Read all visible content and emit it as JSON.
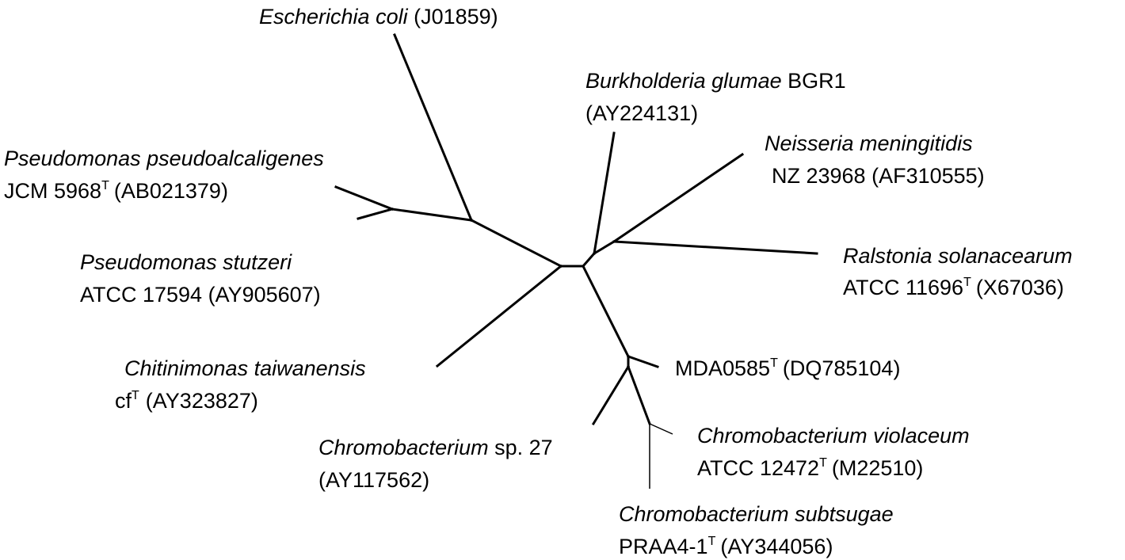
{
  "tree": {
    "taxa": {
      "ecoli": {
        "name": "Escherichia coli",
        "accession": "(J01859)"
      },
      "burkholderia": {
        "name": "Burkholderia glumae",
        "strain": "BGR1",
        "accession": "(AY224131)"
      },
      "neisseria": {
        "name": "Neisseria meningitidis",
        "strain": "NZ 23968",
        "accession": "(AF310555)"
      },
      "ralstonia": {
        "name": "Ralstonia solanacearum",
        "strain": "ATCC 11696",
        "type_mark": "T",
        "accession": "(X67036)"
      },
      "mda": {
        "strain": "MDA0585",
        "type_mark": "T",
        "accession": "(DQ785104)"
      },
      "cviolaceum": {
        "name": "Chromobacterium violaceum",
        "strain": "ATCC 12472",
        "type_mark": "T",
        "accession": "(M22510)"
      },
      "csubtsugae": {
        "name": "Chromobacterium subtsugae",
        "strain": "PRAA4-1",
        "type_mark": "T",
        "accession": "(AY344056)"
      },
      "csp27": {
        "name": "Chromobacterium",
        "strain": "sp. 27",
        "accession": "(AY117562)"
      },
      "chitinimonas": {
        "name": "Chitinimonas taiwanensis",
        "strain": "cf",
        "type_mark": "T",
        "accession": "(AY323827)"
      },
      "pstutzeri": {
        "name": "Pseudomonas stutzeri",
        "strain": "ATCC 17594 (AY905607)"
      },
      "ppseudo": {
        "name": "Pseudomonas pseudoalcaligenes",
        "strain": "JCM 5968",
        "type_mark": "T",
        "accession": "(AB021379)"
      }
    }
  }
}
